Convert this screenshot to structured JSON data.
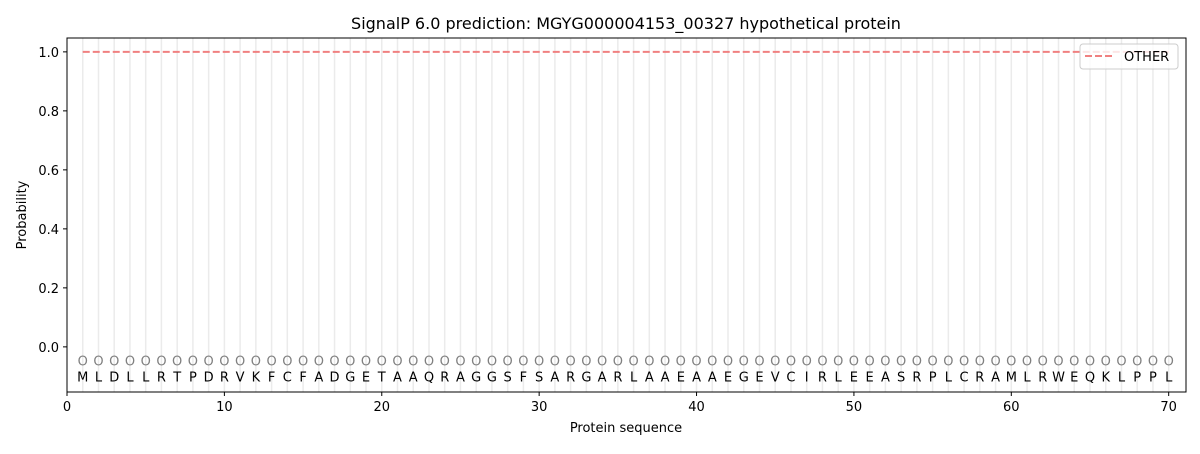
{
  "chart_data": {
    "type": "line",
    "title": "SignalP 6.0 prediction: MGYG000004153_00327 hypothetical protein",
    "xlabel": "Protein sequence",
    "ylabel": "Probability",
    "xlim": [
      0,
      71.1
    ],
    "ylim": [
      -0.153,
      1.047
    ],
    "xticks": [
      0,
      10,
      20,
      30,
      40,
      50,
      60,
      70
    ],
    "yticks": [
      0.0,
      0.2,
      0.4,
      0.6,
      0.8,
      1.0
    ],
    "ytick_labels": [
      "0.0",
      "0.2",
      "0.4",
      "0.6",
      "0.8",
      "1.0"
    ],
    "grid": "vertical lines at each residue",
    "legend_placement": "top-right",
    "sequence": [
      "M",
      "L",
      "D",
      "L",
      "L",
      "R",
      "T",
      "P",
      "D",
      "R",
      "V",
      "K",
      "F",
      "C",
      "F",
      "A",
      "D",
      "G",
      "E",
      "T",
      "A",
      "A",
      "Q",
      "R",
      "A",
      "G",
      "G",
      "S",
      "F",
      "S",
      "A",
      "R",
      "G",
      "A",
      "R",
      "L",
      "A",
      "A",
      "E",
      "A",
      "A",
      "E",
      "G",
      "E",
      "V",
      "C",
      "I",
      "R",
      "L",
      "E",
      "E",
      "A",
      "S",
      "R",
      "P",
      "L",
      "C",
      "R",
      "A",
      "M",
      "L",
      "R",
      "W",
      "E",
      "Q",
      "K",
      "L",
      "P",
      "P",
      "L"
    ],
    "region_label": "O",
    "series": [
      {
        "name": "OTHER",
        "color": "#f08080",
        "style": "dashed",
        "x_start": 1,
        "x_end": 70,
        "value": 1.0
      }
    ]
  }
}
